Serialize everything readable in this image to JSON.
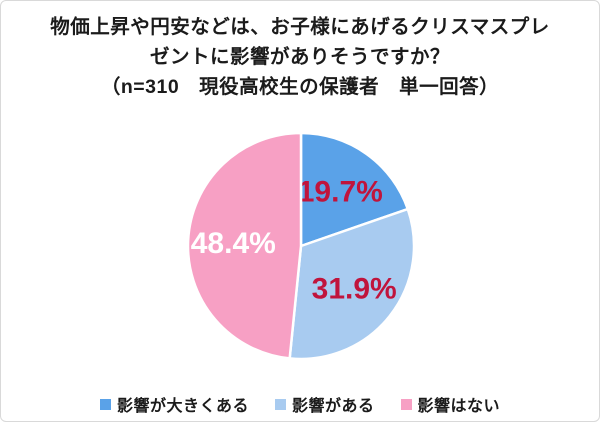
{
  "title": {
    "line1": "物価上昇や円安などは、お子様にあげるクリスマスプレ",
    "line2": "ゼントに影響がありそうですか？",
    "note": "（n=310　現役高校生の保護者　単一回答）"
  },
  "chart_data": {
    "type": "pie",
    "title": "物価上昇や円安などは、お子様にあげるクリスマスプレゼントに影響がありそうですか？",
    "subtitle": "（n=310　現役高校生の保護者　単一回答）",
    "n": 310,
    "unit": "%",
    "start_angle_deg": -90,
    "direction": "clockwise",
    "legend_position": "bottom",
    "separator_color": "#ffffff",
    "slices": [
      {
        "name": "slice-impact-large",
        "label": "影響が大きくある",
        "value": 19.7,
        "value_label": "19.7%",
        "color": "#5AA2E8",
        "value_label_color": "#C0143C"
      },
      {
        "name": "slice-impact-some",
        "label": "影響がある",
        "value": 31.9,
        "value_label": "31.9%",
        "color": "#A8CBF0",
        "value_label_color": "#C0143C"
      },
      {
        "name": "slice-impact-none",
        "label": "影響はない",
        "value": 48.4,
        "value_label": "48.4%",
        "color": "#F7A0C4",
        "value_label_color": "#FFFFFF"
      }
    ]
  }
}
